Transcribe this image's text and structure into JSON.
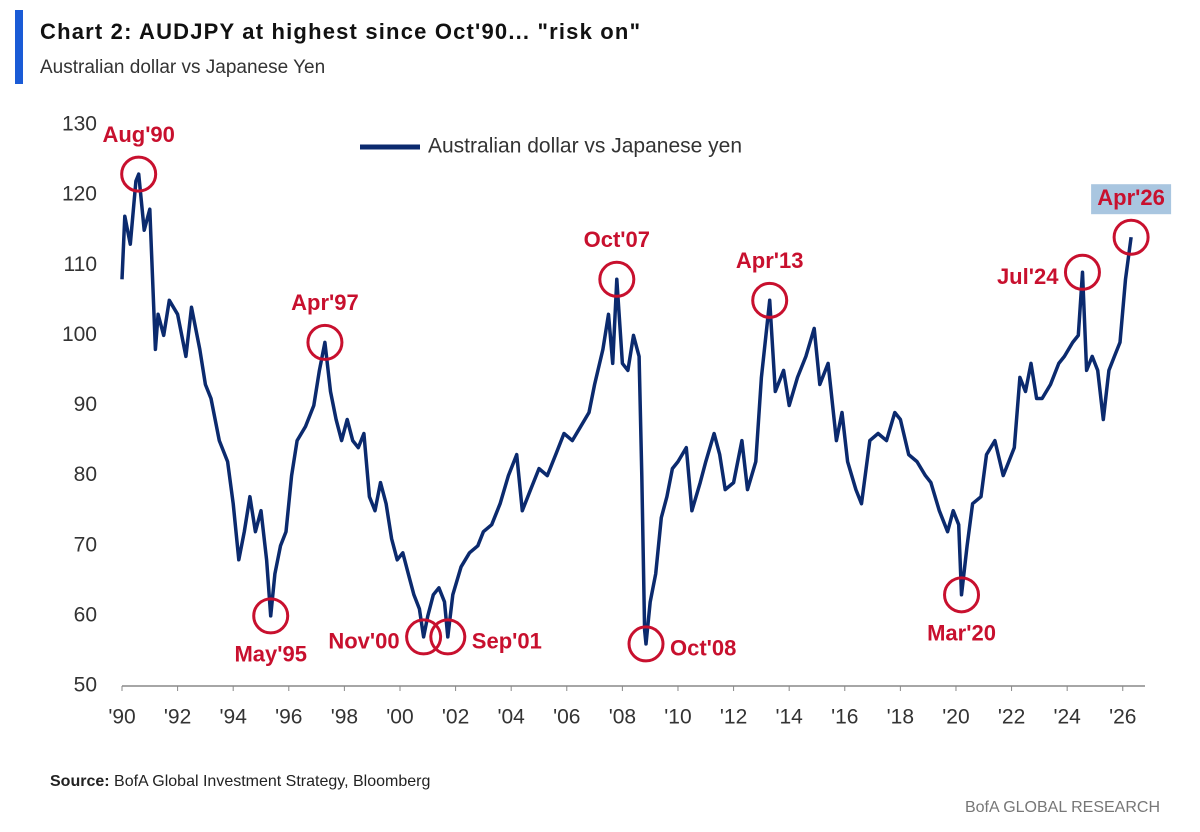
{
  "chart_data": {
    "type": "line",
    "title": "Chart 2: AUDJPY at highest since Oct'90... \"risk on\"",
    "subtitle": "Australian dollar vs Japanese Yen",
    "source_label": "Source:",
    "source": "BofA Global Investment Strategy, Bloomberg",
    "brand": "BofA GLOBAL RESEARCH",
    "x": [
      1990.0,
      1990.1,
      1990.3,
      1990.5,
      1990.6,
      1990.8,
      1991.0,
      1991.2,
      1991.3,
      1991.5,
      1991.7,
      1992.0,
      1992.3,
      1992.5,
      1992.8,
      1993.0,
      1993.2,
      1993.5,
      1993.8,
      1994.0,
      1994.2,
      1994.4,
      1994.6,
      1994.8,
      1995.0,
      1995.2,
      1995.35,
      1995.5,
      1995.7,
      1995.9,
      1996.1,
      1996.3,
      1996.6,
      1996.9,
      1997.1,
      1997.3,
      1997.5,
      1997.7,
      1997.9,
      1998.1,
      1998.3,
      1998.5,
      1998.7,
      1998.9,
      1999.1,
      1999.3,
      1999.5,
      1999.7,
      1999.9,
      2000.1,
      2000.3,
      2000.5,
      2000.7,
      2000.85,
      2001.0,
      2001.2,
      2001.4,
      2001.6,
      2001.72,
      2001.9,
      2002.2,
      2002.5,
      2002.8,
      2003.0,
      2003.3,
      2003.6,
      2003.9,
      2004.2,
      2004.4,
      2004.7,
      2005.0,
      2005.3,
      2005.6,
      2005.9,
      2006.2,
      2006.5,
      2006.8,
      2007.0,
      2007.3,
      2007.5,
      2007.65,
      2007.8,
      2008.0,
      2008.2,
      2008.4,
      2008.6,
      2008.7,
      2008.8,
      2008.85,
      2009.0,
      2009.2,
      2009.4,
      2009.6,
      2009.8,
      2010.0,
      2010.3,
      2010.5,
      2010.8,
      2011.0,
      2011.3,
      2011.5,
      2011.7,
      2012.0,
      2012.3,
      2012.5,
      2012.8,
      2013.0,
      2013.3,
      2013.5,
      2013.8,
      2014.0,
      2014.3,
      2014.6,
      2014.9,
      2015.1,
      2015.4,
      2015.7,
      2015.9,
      2016.1,
      2016.4,
      2016.6,
      2016.9,
      2017.2,
      2017.5,
      2017.8,
      2018.0,
      2018.3,
      2018.6,
      2018.9,
      2019.1,
      2019.4,
      2019.7,
      2019.9,
      2020.1,
      2020.2,
      2020.4,
      2020.6,
      2020.9,
      2021.1,
      2021.4,
      2021.7,
      2021.9,
      2022.1,
      2022.3,
      2022.5,
      2022.7,
      2022.9,
      2023.1,
      2023.4,
      2023.7,
      2023.9,
      2024.2,
      2024.4,
      2024.55,
      2024.7,
      2024.9,
      2025.1,
      2025.3,
      2025.5,
      2025.7,
      2025.9,
      2026.1,
      2026.3
    ],
    "series": [
      {
        "name": "Australian dollar vs Japanese yen",
        "color": "#0b2a6e",
        "values": [
          108,
          117,
          113,
          122,
          123,
          115,
          118,
          98,
          103,
          100,
          105,
          103,
          97,
          104,
          98,
          93,
          91,
          85,
          82,
          76,
          68,
          72,
          77,
          72,
          75,
          68,
          60,
          66,
          70,
          72,
          80,
          85,
          87,
          90,
          95,
          99,
          92,
          88,
          85,
          88,
          85,
          84,
          86,
          77,
          75,
          79,
          76,
          71,
          68,
          69,
          66,
          63,
          61,
          57,
          60,
          63,
          64,
          62,
          57,
          63,
          67,
          69,
          70,
          72,
          73,
          76,
          80,
          83,
          75,
          78,
          81,
          80,
          83,
          86,
          85,
          87,
          89,
          93,
          98,
          103,
          96,
          108,
          96,
          95,
          100,
          97,
          80,
          58,
          56,
          62,
          66,
          74,
          77,
          81,
          82,
          84,
          75,
          79,
          82,
          86,
          83,
          78,
          79,
          85,
          78,
          82,
          94,
          105,
          92,
          95,
          90,
          94,
          97,
          101,
          93,
          96,
          85,
          89,
          82,
          78,
          76,
          85,
          86,
          85,
          89,
          88,
          83,
          82,
          80,
          79,
          75,
          72,
          75,
          73,
          63,
          70,
          76,
          77,
          83,
          85,
          80,
          82,
          84,
          94,
          92,
          96,
          91,
          91,
          93,
          96,
          97,
          99,
          100,
          109,
          95,
          97,
          95,
          88,
          95,
          97,
          99,
          108,
          114
        ]
      }
    ],
    "xlim": [
      1990,
      2026.8
    ],
    "xticks": [
      {
        "value": 1990,
        "label": "'90"
      },
      {
        "value": 1992,
        "label": "'92"
      },
      {
        "value": 1994,
        "label": "'94"
      },
      {
        "value": 1996,
        "label": "'96"
      },
      {
        "value": 1998,
        "label": "'98"
      },
      {
        "value": 2000,
        "label": "'00"
      },
      {
        "value": 2002,
        "label": "'02"
      },
      {
        "value": 2004,
        "label": "'04"
      },
      {
        "value": 2006,
        "label": "'06"
      },
      {
        "value": 2008,
        "label": "'08"
      },
      {
        "value": 2010,
        "label": "'10"
      },
      {
        "value": 2012,
        "label": "'12"
      },
      {
        "value": 2014,
        "label": "'14"
      },
      {
        "value": 2016,
        "label": "'16"
      },
      {
        "value": 2018,
        "label": "'18"
      },
      {
        "value": 2020,
        "label": "'20"
      },
      {
        "value": 2022,
        "label": "'22"
      },
      {
        "value": 2024,
        "label": "'24"
      },
      {
        "value": 2026,
        "label": "'26"
      }
    ],
    "ylim": [
      50,
      130
    ],
    "yticks": [
      50,
      60,
      70,
      80,
      90,
      100,
      110,
      120,
      130
    ],
    "grid": false,
    "annotations": [
      {
        "text": "Aug'90",
        "x": 1990.6,
        "y": 123,
        "position": "above"
      },
      {
        "text": "May'95",
        "x": 1995.35,
        "y": 60,
        "position": "below"
      },
      {
        "text": "Apr'97",
        "x": 1997.3,
        "y": 99,
        "position": "above"
      },
      {
        "text": "Nov'00",
        "x": 2000.85,
        "y": 57,
        "position": "left"
      },
      {
        "text": "Sep'01",
        "x": 2001.72,
        "y": 57,
        "position": "right"
      },
      {
        "text": "Oct'07",
        "x": 2007.8,
        "y": 108,
        "position": "above"
      },
      {
        "text": "Oct'08",
        "x": 2008.85,
        "y": 56,
        "position": "right"
      },
      {
        "text": "Apr'13",
        "x": 2013.3,
        "y": 105,
        "position": "above"
      },
      {
        "text": "Mar'20",
        "x": 2020.2,
        "y": 63,
        "position": "below"
      },
      {
        "text": "Jul'24",
        "x": 2024.55,
        "y": 109,
        "position": "left"
      },
      {
        "text": "Apr'26",
        "x": 2026.3,
        "y": 114,
        "position": "above",
        "highlight": true
      }
    ],
    "annotation_color": "#c8102e"
  }
}
